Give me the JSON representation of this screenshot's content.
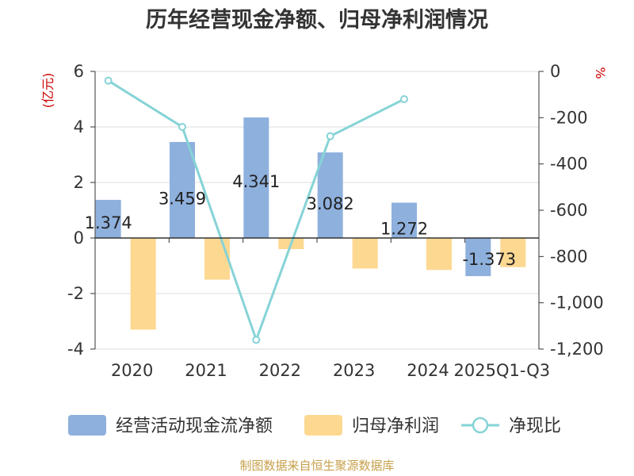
{
  "chart_data": {
    "type": "bar",
    "title": "历年经营现金净额、归母净利润情况",
    "categories": [
      "2020",
      "2021",
      "2022",
      "2023",
      "2024",
      "2025Q1-Q3"
    ],
    "y_left": {
      "unit": "(亿元)",
      "ylim": [
        -4,
        6
      ],
      "ticks": [
        6,
        4,
        2,
        0,
        -2,
        -4
      ]
    },
    "y_right": {
      "unit": "%",
      "ylim": [
        -1200,
        0
      ],
      "ticks": [
        "0",
        "-200",
        "-400",
        "-600",
        "-800",
        "-1,000",
        "-1,200"
      ]
    },
    "grid": true,
    "legend_position": "bottom",
    "series": [
      {
        "name": "经营活动现金流净额",
        "type": "bar",
        "axis": "left",
        "values": [
          1.374,
          3.459,
          4.341,
          3.082,
          1.272,
          -1.373
        ],
        "labels": [
          "1.374",
          "3.459",
          "4.341",
          "3.082",
          "1.272",
          "-1.373"
        ],
        "color": "#8eb0dd"
      },
      {
        "name": "归母净利润",
        "type": "bar",
        "axis": "left",
        "values": [
          -3.3,
          -1.5,
          -0.4,
          -1.1,
          -1.15,
          -1.05
        ],
        "color": "#fdd891"
      },
      {
        "name": "净现比",
        "type": "line",
        "axis": "right",
        "values": [
          -40,
          -240,
          -1160,
          -280,
          -120,
          null
        ],
        "color": "#86d3d6"
      }
    ]
  },
  "source": "制图数据来自恒生聚源数据库",
  "colors": {
    "unit": "#cc0000",
    "source": "#c7a04a",
    "grid": "#dddddd",
    "axis": "#333333"
  }
}
